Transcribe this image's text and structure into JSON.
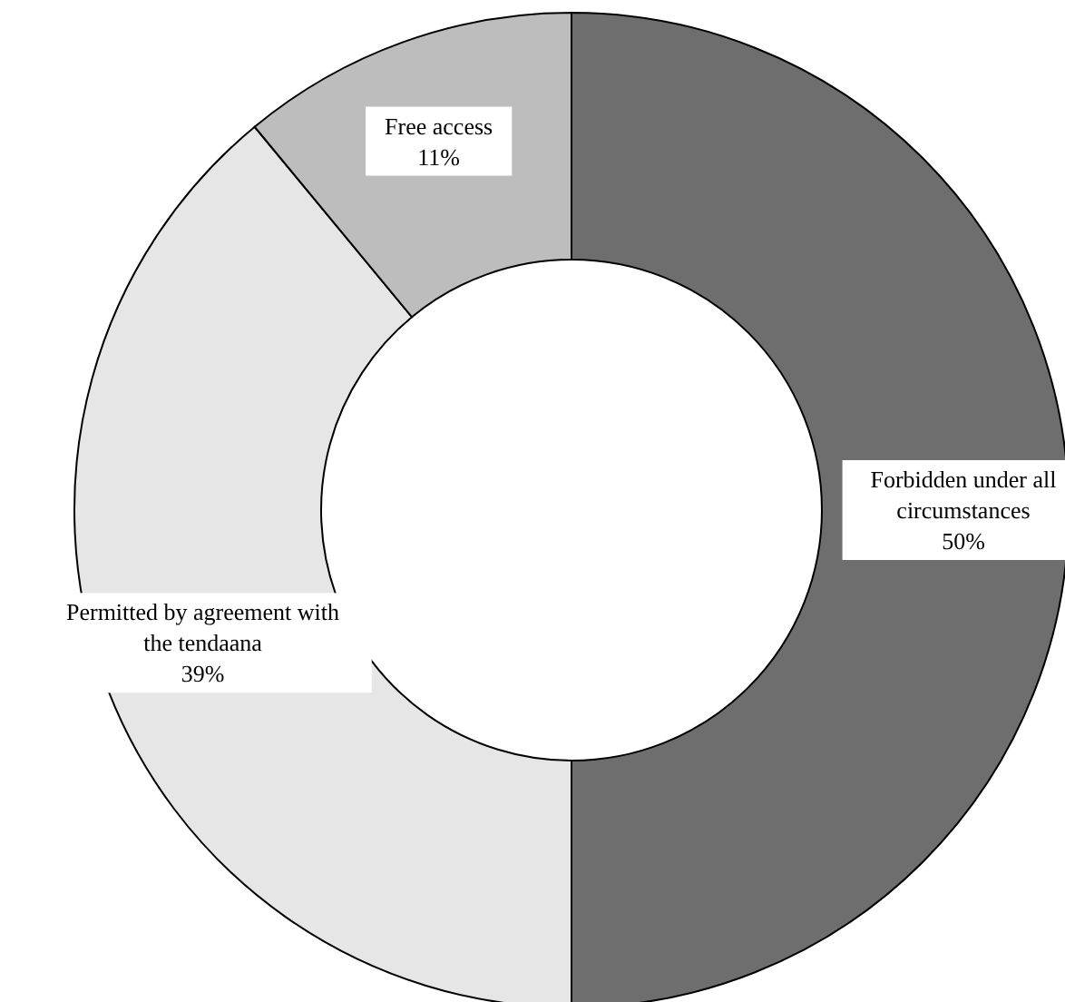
{
  "chart_data": {
    "type": "donut",
    "categories": [
      "Forbidden under all circumstances",
      "Permitted by agreement with the tendaana",
      "Free access"
    ],
    "values": [
      50,
      39,
      11
    ],
    "value_labels": [
      "50%",
      "39%",
      "11%"
    ],
    "colors": [
      "#6e6e6e",
      "#e6e6e6",
      "#bdbdbd"
    ]
  }
}
